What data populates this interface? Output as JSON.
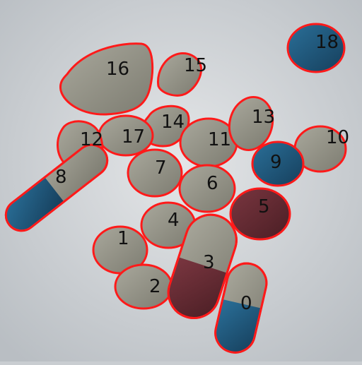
{
  "image": {
    "description_colors": {
      "background": "#cfd3d6",
      "outline": "#ff1a1a",
      "pill_gray": "#8f8e82",
      "pill_blue": "#1f5a80",
      "pill_red": "#5e2a30"
    }
  },
  "labels": [
    {
      "id": "pill-0",
      "text": "0"
    },
    {
      "id": "pill-1",
      "text": "1"
    },
    {
      "id": "pill-2",
      "text": "2"
    },
    {
      "id": "pill-3",
      "text": "3"
    },
    {
      "id": "pill-4",
      "text": "4"
    },
    {
      "id": "pill-5",
      "text": "5"
    },
    {
      "id": "pill-6",
      "text": "6"
    },
    {
      "id": "pill-7",
      "text": "7"
    },
    {
      "id": "pill-8",
      "text": "8"
    },
    {
      "id": "pill-9",
      "text": "9"
    },
    {
      "id": "pill-10",
      "text": "10"
    },
    {
      "id": "pill-11",
      "text": "11"
    },
    {
      "id": "pill-12",
      "text": "12"
    },
    {
      "id": "pill-13",
      "text": "13"
    },
    {
      "id": "pill-14",
      "text": "14"
    },
    {
      "id": "pill-15",
      "text": "15"
    },
    {
      "id": "pill-16",
      "text": "16"
    },
    {
      "id": "pill-17",
      "text": "17"
    },
    {
      "id": "pill-18",
      "text": "18"
    }
  ]
}
